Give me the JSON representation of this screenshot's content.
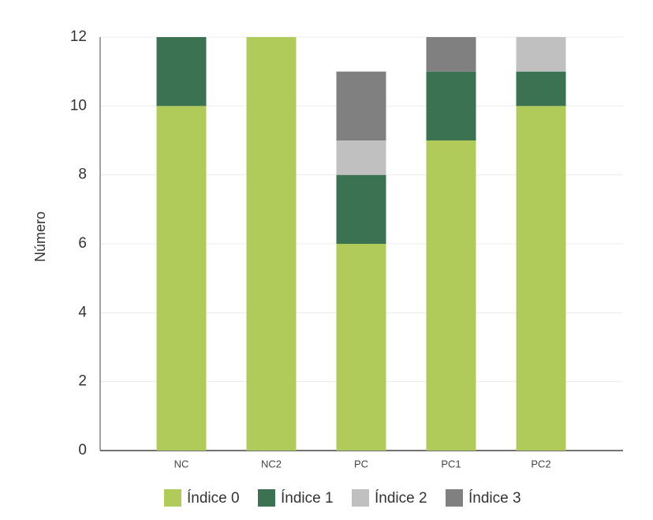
{
  "chart_data": {
    "type": "stacked_bar",
    "y_label": "Número",
    "categories": [
      "NC",
      "NC2",
      "PC",
      "PC1",
      "PC2"
    ],
    "series": [
      {
        "name": "Índice 0",
        "color": "#b0cb5a",
        "values": [
          10,
          12,
          6,
          9,
          10
        ]
      },
      {
        "name": "Índice 1",
        "color": "#3b7352",
        "values": [
          2,
          0,
          2,
          2,
          1
        ]
      },
      {
        "name": "Índice 2",
        "color": "#c0c0c0",
        "values": [
          0,
          0,
          1,
          0,
          1
        ]
      },
      {
        "name": "Índice 3",
        "color": "#808080",
        "values": [
          0,
          0,
          2,
          1,
          0
        ]
      }
    ],
    "ylim": [
      0,
      12
    ],
    "yticks": [
      0,
      2,
      4,
      6,
      8,
      10,
      12
    ],
    "grid": true,
    "legend": "bottom"
  }
}
